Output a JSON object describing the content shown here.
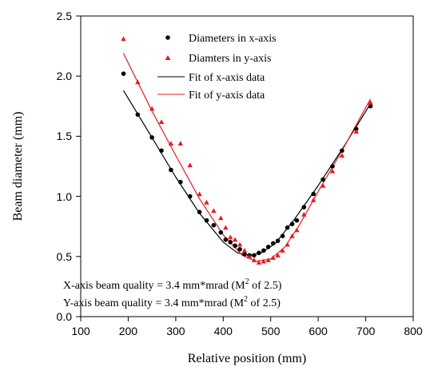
{
  "chart_data": {
    "type": "scatter",
    "xlabel": "Relative position (mm)",
    "ylabel": "Beam diameter (mm)",
    "xlim": [
      100,
      800
    ],
    "ylim": [
      0.0,
      2.5
    ],
    "xticks": [
      "100",
      "200",
      "300",
      "400",
      "500",
      "600",
      "700",
      "800"
    ],
    "yticks": [
      "0.0",
      "0.5",
      "1.0",
      "1.5",
      "2.0",
      "2.5"
    ],
    "grid": false,
    "legend_position": "top-center",
    "series": [
      {
        "name": "Diameters in x-axis",
        "kind": "points",
        "marker": "circle",
        "color": "#000000",
        "x": [
          190,
          220,
          250,
          270,
          290,
          310,
          330,
          350,
          365,
          380,
          395,
          405,
          415,
          425,
          435,
          445,
          455,
          465,
          475,
          485,
          495,
          505,
          515,
          525,
          535,
          545,
          555,
          570,
          590,
          610,
          630,
          650,
          680,
          710
        ],
        "y": [
          2.02,
          1.68,
          1.49,
          1.38,
          1.22,
          1.12,
          1.0,
          0.87,
          0.8,
          0.76,
          0.7,
          0.64,
          0.62,
          0.59,
          0.56,
          0.52,
          0.51,
          0.51,
          0.53,
          0.55,
          0.58,
          0.61,
          0.63,
          0.67,
          0.74,
          0.77,
          0.8,
          0.91,
          1.02,
          1.14,
          1.25,
          1.38,
          1.56,
          1.75
        ]
      },
      {
        "name": "Diamters in y-axis",
        "kind": "points",
        "marker": "triangle",
        "color": "#e8191e",
        "x": [
          190,
          220,
          250,
          270,
          290,
          310,
          330,
          350,
          365,
          380,
          395,
          405,
          415,
          425,
          435,
          445,
          455,
          465,
          475,
          485,
          495,
          505,
          515,
          525,
          535,
          545,
          555,
          570,
          590,
          610,
          630,
          650,
          680,
          710
        ],
        "y": [
          2.31,
          1.95,
          1.73,
          1.62,
          1.44,
          1.44,
          1.26,
          1.02,
          0.95,
          0.88,
          0.82,
          0.74,
          0.66,
          0.64,
          0.6,
          0.55,
          0.5,
          0.47,
          0.45,
          0.46,
          0.47,
          0.49,
          0.51,
          0.55,
          0.6,
          0.67,
          0.72,
          0.85,
          0.97,
          1.09,
          1.21,
          1.34,
          1.54,
          1.78
        ]
      },
      {
        "name": "Fit of x-axis data",
        "kind": "line",
        "color": "#000000",
        "x": [
          190,
          250,
          300,
          350,
          400,
          430,
          455,
          480,
          510,
          550,
          600,
          650,
          710
        ],
        "y": [
          1.88,
          1.49,
          1.16,
          0.86,
          0.62,
          0.53,
          0.51,
          0.53,
          0.61,
          0.81,
          1.09,
          1.39,
          1.77
        ]
      },
      {
        "name": "Fit of y-axis data",
        "kind": "line",
        "color": "#e8191e",
        "x": [
          190,
          250,
          300,
          350,
          400,
          440,
          470,
          500,
          530,
          560,
          600,
          650,
          710
        ],
        "y": [
          2.19,
          1.71,
          1.34,
          0.98,
          0.68,
          0.51,
          0.46,
          0.48,
          0.58,
          0.76,
          1.04,
          1.38,
          1.81
        ]
      }
    ],
    "annotations": [
      {
        "id": "x-quality",
        "prefix": "X-axis beam quality = 3.4 mm*mrad (M",
        "superscript": "2",
        "suffix": " of 2.5)"
      },
      {
        "id": "y-quality",
        "prefix": "Y-axis beam quality = 3.4 mm*mrad (M",
        "superscript": "2",
        "suffix": " of 2.5)"
      }
    ]
  }
}
